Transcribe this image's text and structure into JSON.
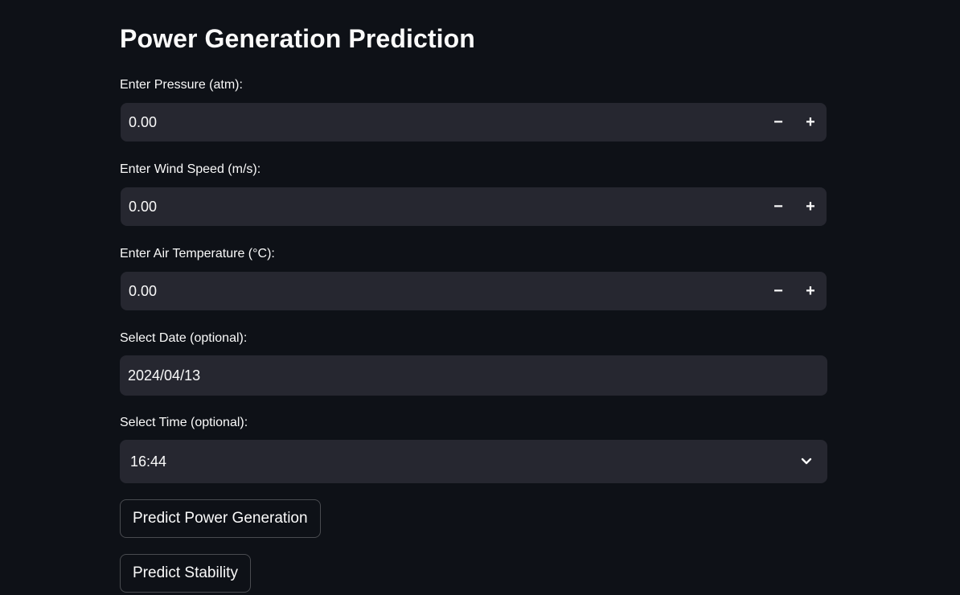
{
  "page": {
    "title": "Power Generation Prediction"
  },
  "pressure": {
    "label": "Enter Pressure (atm):",
    "value": "0.00",
    "decrement": "−",
    "increment": "+"
  },
  "wind_speed": {
    "label": "Enter Wind Speed (m/s):",
    "value": "0.00",
    "decrement": "−",
    "increment": "+"
  },
  "air_temperature": {
    "label": "Enter Air Temperature (°C):",
    "value": "0.00",
    "decrement": "−",
    "increment": "+"
  },
  "date": {
    "label": "Select Date (optional):",
    "value": "2024/04/13"
  },
  "time": {
    "label": "Select Time (optional):",
    "value": "16:44",
    "icon": "chevron-down-icon"
  },
  "buttons": {
    "predict_power": "Predict Power Generation",
    "predict_stability": "Predict Stability"
  },
  "colors": {
    "background": "#0e1117",
    "input_background": "#262730",
    "text": "#fafafa"
  }
}
